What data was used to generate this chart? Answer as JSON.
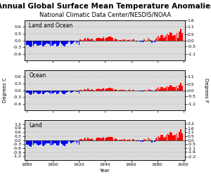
{
  "title": "Annual Global Surface Mean Temperature Anomalies",
  "subtitle": "National Climatic Data Center/NESDIS/NOAA",
  "ylabel_left": "Degrees C",
  "ylabel_right": "Degrees F",
  "xlabel": "Year",
  "panels": [
    {
      "label": "Land and Ocean",
      "ylim_c": [
        -0.9,
        0.9
      ],
      "yticks_c": [
        0.0,
        0.6,
        0.3,
        -0.3,
        -0.6
      ],
      "yticks_f_vals": [
        1.6,
        1.1,
        0.5,
        0.0,
        -0.5,
        -1.1
      ],
      "ylim_f": [
        -1.62,
        1.62
      ]
    },
    {
      "label": "Ocean",
      "ylim_c": [
        -0.9,
        0.9
      ],
      "yticks_c": [
        0.6,
        0.3,
        0.0,
        -0.3,
        -0.6
      ],
      "yticks_f_vals": [
        1.1,
        0.5,
        0.0,
        -0.5,
        -1.1
      ],
      "ylim_f": [
        -1.62,
        1.62
      ]
    },
    {
      "label": "Land",
      "ylim_c": [
        -1.5,
        1.5
      ],
      "yticks_c": [
        1.2,
        0.9,
        0.6,
        0.3,
        0.0,
        -0.3,
        -0.6,
        -0.9,
        -1.2
      ],
      "yticks_f_vals": [
        2.2,
        1.6,
        1.1,
        0.5,
        0.0,
        -0.5,
        -1.1,
        -1.6,
        -2.2
      ],
      "ylim_f": [
        -2.7,
        2.7
      ]
    }
  ],
  "year_start": 1880,
  "year_end": 2000,
  "color_pos": "#FF0000",
  "color_neg": "#0000FF",
  "bg_color": "#DCDCDC",
  "title_fontsize": 7.5,
  "subtitle_fontsize": 6,
  "label_fontsize": 5,
  "tick_fontsize": 4.5,
  "panel_label_fontsize": 5.5
}
